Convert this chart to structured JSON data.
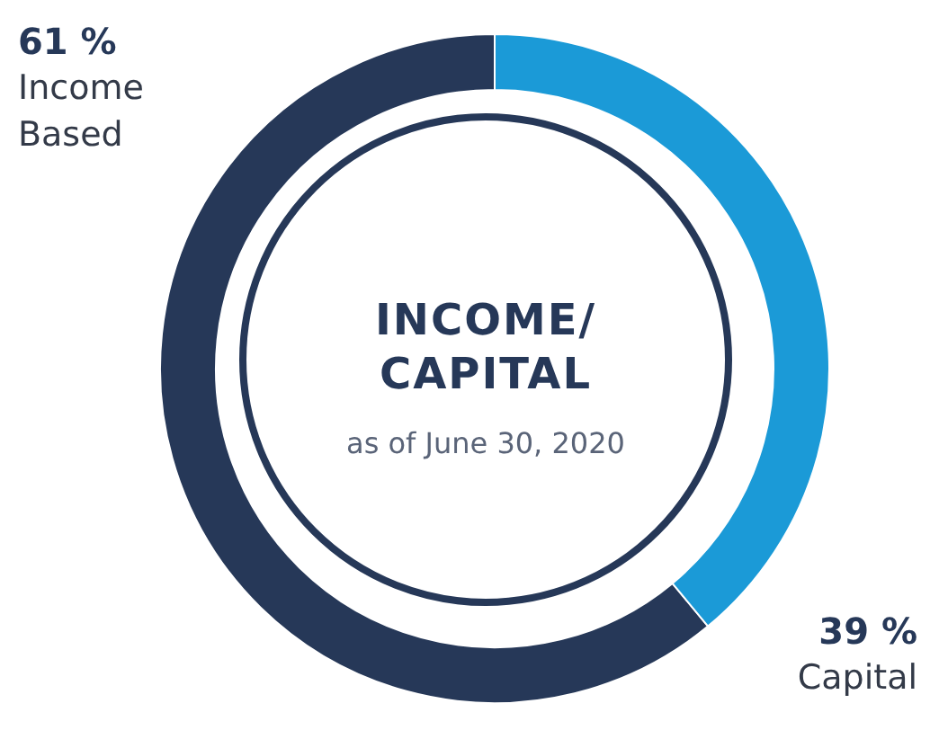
{
  "chart_data": {
    "type": "donut",
    "title": "INCOME/ CAPITAL",
    "subtitle": "as of June 30, 2020",
    "categories": [
      "Income Based",
      "Capital"
    ],
    "values": [
      61,
      39
    ],
    "colors": [
      "#263858",
      "#1b9ad7"
    ],
    "value_labels": [
      "61 %",
      "39 %"
    ],
    "legend": false
  }
}
